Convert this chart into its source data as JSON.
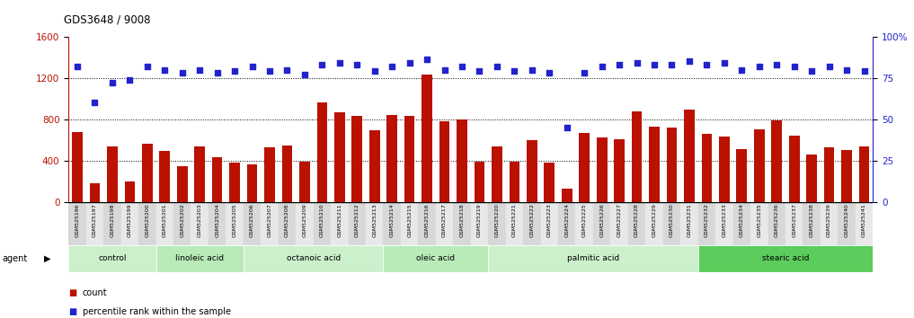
{
  "title": "GDS3648 / 9008",
  "samples": [
    "GSM525196",
    "GSM525197",
    "GSM525198",
    "GSM525199",
    "GSM525200",
    "GSM525201",
    "GSM525202",
    "GSM525203",
    "GSM525204",
    "GSM525205",
    "GSM525206",
    "GSM525207",
    "GSM525208",
    "GSM525209",
    "GSM525210",
    "GSM525211",
    "GSM525212",
    "GSM525213",
    "GSM525214",
    "GSM525215",
    "GSM525216",
    "GSM525217",
    "GSM525218",
    "GSM525219",
    "GSM525220",
    "GSM525221",
    "GSM525222",
    "GSM525223",
    "GSM525224",
    "GSM525225",
    "GSM525226",
    "GSM525227",
    "GSM525228",
    "GSM525229",
    "GSM525230",
    "GSM525231",
    "GSM525232",
    "GSM525233",
    "GSM525234",
    "GSM525235",
    "GSM525236",
    "GSM525237",
    "GSM525238",
    "GSM525239",
    "GSM525240",
    "GSM525241"
  ],
  "counts": [
    680,
    180,
    540,
    200,
    560,
    490,
    350,
    540,
    430,
    380,
    360,
    530,
    550,
    390,
    960,
    870,
    830,
    690,
    840,
    830,
    1230,
    780,
    800,
    390,
    540,
    390,
    600,
    380,
    130,
    670,
    620,
    610,
    880,
    730,
    720,
    890,
    660,
    630,
    510,
    700,
    790,
    640,
    460,
    530,
    500,
    540
  ],
  "percentile": [
    82,
    60,
    72,
    74,
    82,
    80,
    78,
    80,
    78,
    79,
    82,
    79,
    80,
    77,
    83,
    84,
    83,
    79,
    82,
    84,
    86,
    80,
    82,
    79,
    82,
    79,
    80,
    78,
    45,
    78,
    82,
    83,
    84,
    83,
    83,
    85,
    83,
    84,
    80,
    82,
    83,
    82,
    79,
    82,
    80,
    79
  ],
  "groups": [
    {
      "label": "control",
      "start": 0,
      "end": 5,
      "color": "#ccf0cc"
    },
    {
      "label": "linoleic acid",
      "start": 5,
      "end": 10,
      "color": "#b8ebb8"
    },
    {
      "label": "octanoic acid",
      "start": 10,
      "end": 18,
      "color": "#ccf0cc"
    },
    {
      "label": "oleic acid",
      "start": 18,
      "end": 24,
      "color": "#b8ebb8"
    },
    {
      "label": "palmitic acid",
      "start": 24,
      "end": 36,
      "color": "#ccf0cc"
    },
    {
      "label": "stearic acid",
      "start": 36,
      "end": 46,
      "color": "#5ccc5c"
    }
  ],
  "bar_color": "#bb1100",
  "dot_color": "#2222cc",
  "ylim_left": [
    0,
    1600
  ],
  "ylim_right": [
    0,
    100
  ],
  "yticks_left": [
    0,
    400,
    800,
    1200,
    1600
  ],
  "yticks_right": [
    0,
    25,
    50,
    75,
    100
  ],
  "ytick_labels_right": [
    "0",
    "25",
    "50",
    "75",
    "100%"
  ],
  "plot_bg_color": "#ffffff",
  "xtick_bg_even": "#d8d8d8",
  "xtick_bg_odd": "#e8e8e8"
}
